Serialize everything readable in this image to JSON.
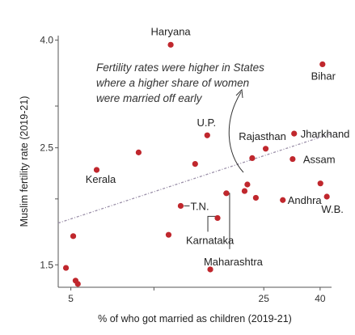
{
  "chart_data": {
    "type": "scatter",
    "title": "",
    "xlabel": "% of who got married as children (2019-21)",
    "ylabel": "Muslim fertility rate (2019-21)",
    "x_scale": "log",
    "y_scale": "log",
    "xlim": [
      4.5,
      44
    ],
    "ylim": [
      1.36,
      4.08
    ],
    "xticks": [
      5,
      10,
      25,
      40
    ],
    "xtick_labels": [
      "5",
      "",
      "25",
      "40"
    ],
    "yticks": [
      1.5,
      2,
      2.5,
      3,
      4
    ],
    "ytick_labels": [
      "1.5",
      "",
      "2.5",
      "",
      "4.0"
    ],
    "grid": false,
    "point_color": "#c0272d",
    "trend_color": "#9a8fa8",
    "trend_line": {
      "x": [
        4.5,
        44
      ],
      "y": [
        1.8,
        2.66
      ]
    },
    "points": [
      {
        "label": "Haryana",
        "x": 11.5,
        "y": 3.92
      },
      {
        "label": "Bihar",
        "x": 40.8,
        "y": 3.6
      },
      {
        "label": "Jharkhand",
        "x": 32.2,
        "y": 2.66
      },
      {
        "label": "Rajasthan",
        "x": 25.4,
        "y": 2.49
      },
      {
        "label": "Assam",
        "x": 31.8,
        "y": 2.38
      },
      {
        "label": "U.P.",
        "x": 15.6,
        "y": 2.64
      },
      {
        "label": "Andhra",
        "x": 29.3,
        "y": 1.99
      },
      {
        "label": "W.B.",
        "x": 42.3,
        "y": 2.02
      },
      {
        "label": "Kerala",
        "x": 6.2,
        "y": 2.27
      },
      {
        "label": "T.N.",
        "x": 12.5,
        "y": 1.94
      },
      {
        "label": "Karnataka",
        "x": 17.0,
        "y": 1.84
      },
      {
        "label": "Maharashtra",
        "x": 18.3,
        "y": 2.05
      },
      {
        "label": "",
        "x": 8.8,
        "y": 2.45
      },
      {
        "label": "",
        "x": 14.1,
        "y": 2.33
      },
      {
        "label": "",
        "x": 22.7,
        "y": 2.39
      },
      {
        "label": "",
        "x": 21.8,
        "y": 2.13
      },
      {
        "label": "",
        "x": 21.3,
        "y": 2.07
      },
      {
        "label": "",
        "x": 23.4,
        "y": 2.01
      },
      {
        "label": "",
        "x": 40.1,
        "y": 2.14
      },
      {
        "label": "",
        "x": 11.3,
        "y": 1.71
      },
      {
        "label": "",
        "x": 5.1,
        "y": 1.7
      },
      {
        "label": "",
        "x": 4.8,
        "y": 1.48
      },
      {
        "label": "",
        "x": 16.0,
        "y": 1.47
      },
      {
        "label": "",
        "x": 5.2,
        "y": 1.4
      },
      {
        "label": "",
        "x": 5.3,
        "y": 1.38
      }
    ],
    "annotation": {
      "lines": [
        "Fertility rates were higher in States",
        "where a higher share of women",
        "were married off early"
      ]
    }
  }
}
